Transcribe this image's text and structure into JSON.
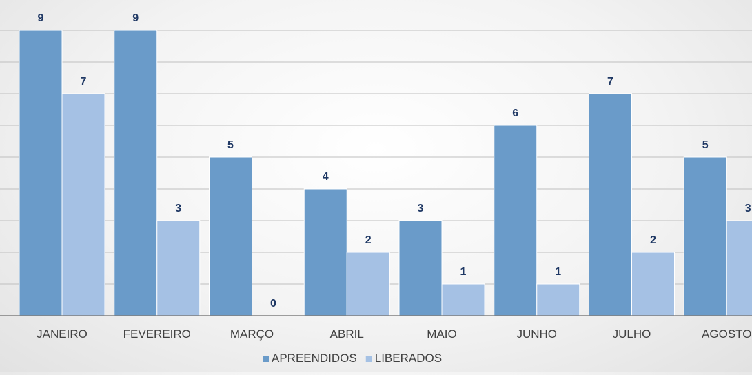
{
  "chart_data": {
    "type": "bar",
    "title": "",
    "xlabel": "",
    "ylabel": "",
    "categories": [
      "JANEIRO",
      "FEVEREIRO",
      "MARÇO",
      "ABRIL",
      "MAIO",
      "JUNHO",
      "JULHO",
      "AGOSTO"
    ],
    "series": [
      {
        "name": "APREENDIDOS",
        "values": [
          9,
          9,
          5,
          4,
          3,
          6,
          7,
          5
        ],
        "color": "#6a9bc9"
      },
      {
        "name": "LIBERADOS",
        "values": [
          7,
          3,
          0,
          2,
          1,
          1,
          2,
          3
        ],
        "color": "#a5c1e4"
      }
    ],
    "ylim": [
      0,
      10
    ],
    "grid": true,
    "legend_position": "bottom",
    "data_labels": true,
    "label_color": "#1f3864"
  }
}
